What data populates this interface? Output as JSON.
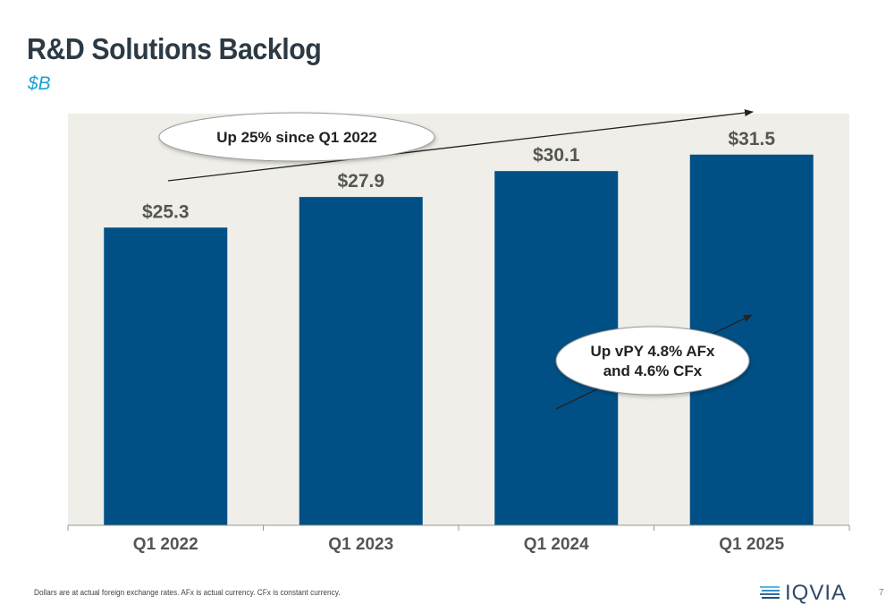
{
  "header": {
    "title": "R&D Solutions Backlog",
    "subtitle": "$B"
  },
  "chart_data": {
    "type": "bar",
    "categories": [
      "Q1 2022",
      "Q1 2023",
      "Q1 2024",
      "Q1 2025"
    ],
    "values": [
      25.3,
      27.9,
      30.1,
      31.5
    ],
    "data_labels": [
      "$25.3",
      "$27.9",
      "$30.1",
      "$31.5"
    ],
    "title": "",
    "xlabel": "",
    "ylabel": "",
    "grid": false,
    "colors": {
      "bar": "#005085",
      "plot_background": "#efeee8",
      "label": "#555555",
      "axis": "#999999"
    },
    "annotations": [
      {
        "text": "Up 25% since Q1 2022"
      },
      {
        "text_line1": "Up vPY 4.8% AFx",
        "text_line2": "and 4.6% CFx"
      }
    ]
  },
  "footer": {
    "footnote": "Dollars are at actual foreign exchange rates. AFx is actual currency. CFx is constant currency.",
    "logo_text": "IQVIA",
    "page_number": "7"
  }
}
